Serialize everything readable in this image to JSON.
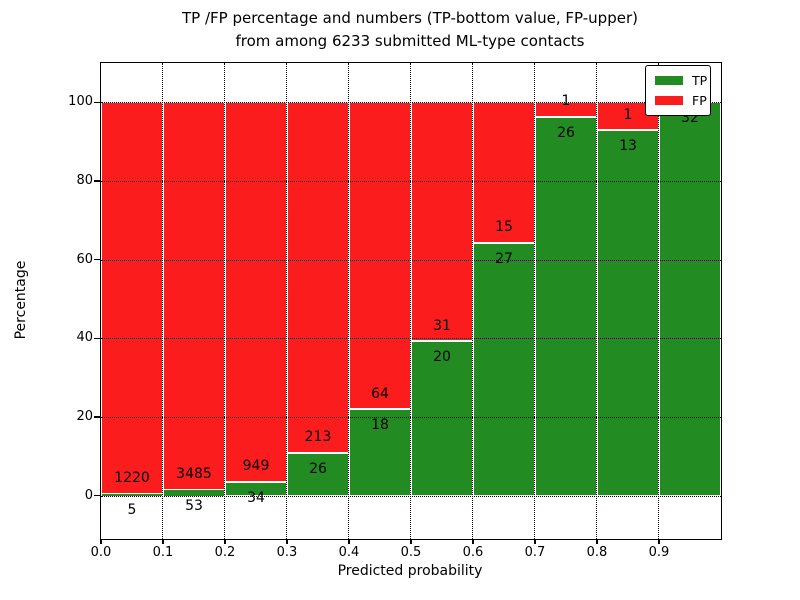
{
  "title": {
    "line1": "TP /FP percentage and numbers (TP-bottom value, FP-upper)",
    "line2": "from among 6233 submitted ML-type contacts"
  },
  "axes": {
    "xlabel": "Predicted probability",
    "ylabel": "Percentage",
    "x_ticks": [
      "0.0",
      "0.1",
      "0.2",
      "0.3",
      "0.4",
      "0.5",
      "0.6",
      "0.7",
      "0.8",
      "0.9"
    ],
    "y_ticks": [
      "0",
      "20",
      "40",
      "60",
      "80",
      "100"
    ]
  },
  "legend": {
    "items": [
      {
        "label": "TP",
        "color": "#228b22"
      },
      {
        "label": "FP",
        "color": "#fb1d1d"
      }
    ]
  },
  "colors": {
    "tp": "#228b22",
    "fp": "#fb1d1d",
    "grid": "#000000",
    "background": "#ffffff",
    "bar_edge": "#ffffff"
  },
  "chart_data": {
    "type": "bar",
    "variant": "stacked-percentage",
    "title": "TP /FP percentage and numbers (TP-bottom value, FP-upper) from among 6233 submitted ML-type contacts",
    "xlabel": "Predicted probability",
    "ylabel": "Percentage",
    "total_submitted": 6233,
    "bin_width": 0.1,
    "categories": [
      0.0,
      0.1,
      0.2,
      0.3,
      0.4,
      0.5,
      0.6,
      0.7,
      0.8,
      0.9
    ],
    "series": [
      {
        "name": "TP",
        "color": "#228b22",
        "counts": [
          5,
          53,
          34,
          26,
          18,
          20,
          27,
          26,
          13,
          32
        ]
      },
      {
        "name": "FP",
        "color": "#fb1d1d",
        "counts": [
          1220,
          3485,
          949,
          213,
          64,
          31,
          15,
          1,
          1,
          0
        ]
      }
    ],
    "tp_percent": [
      0.41,
      1.5,
      3.46,
      10.88,
      21.95,
      39.22,
      64.29,
      96.3,
      92.86,
      100.0
    ],
    "xlim": [
      0.0,
      1.0
    ],
    "ylim": [
      0,
      100
    ],
    "grid": true,
    "legend_position": "upper right"
  }
}
